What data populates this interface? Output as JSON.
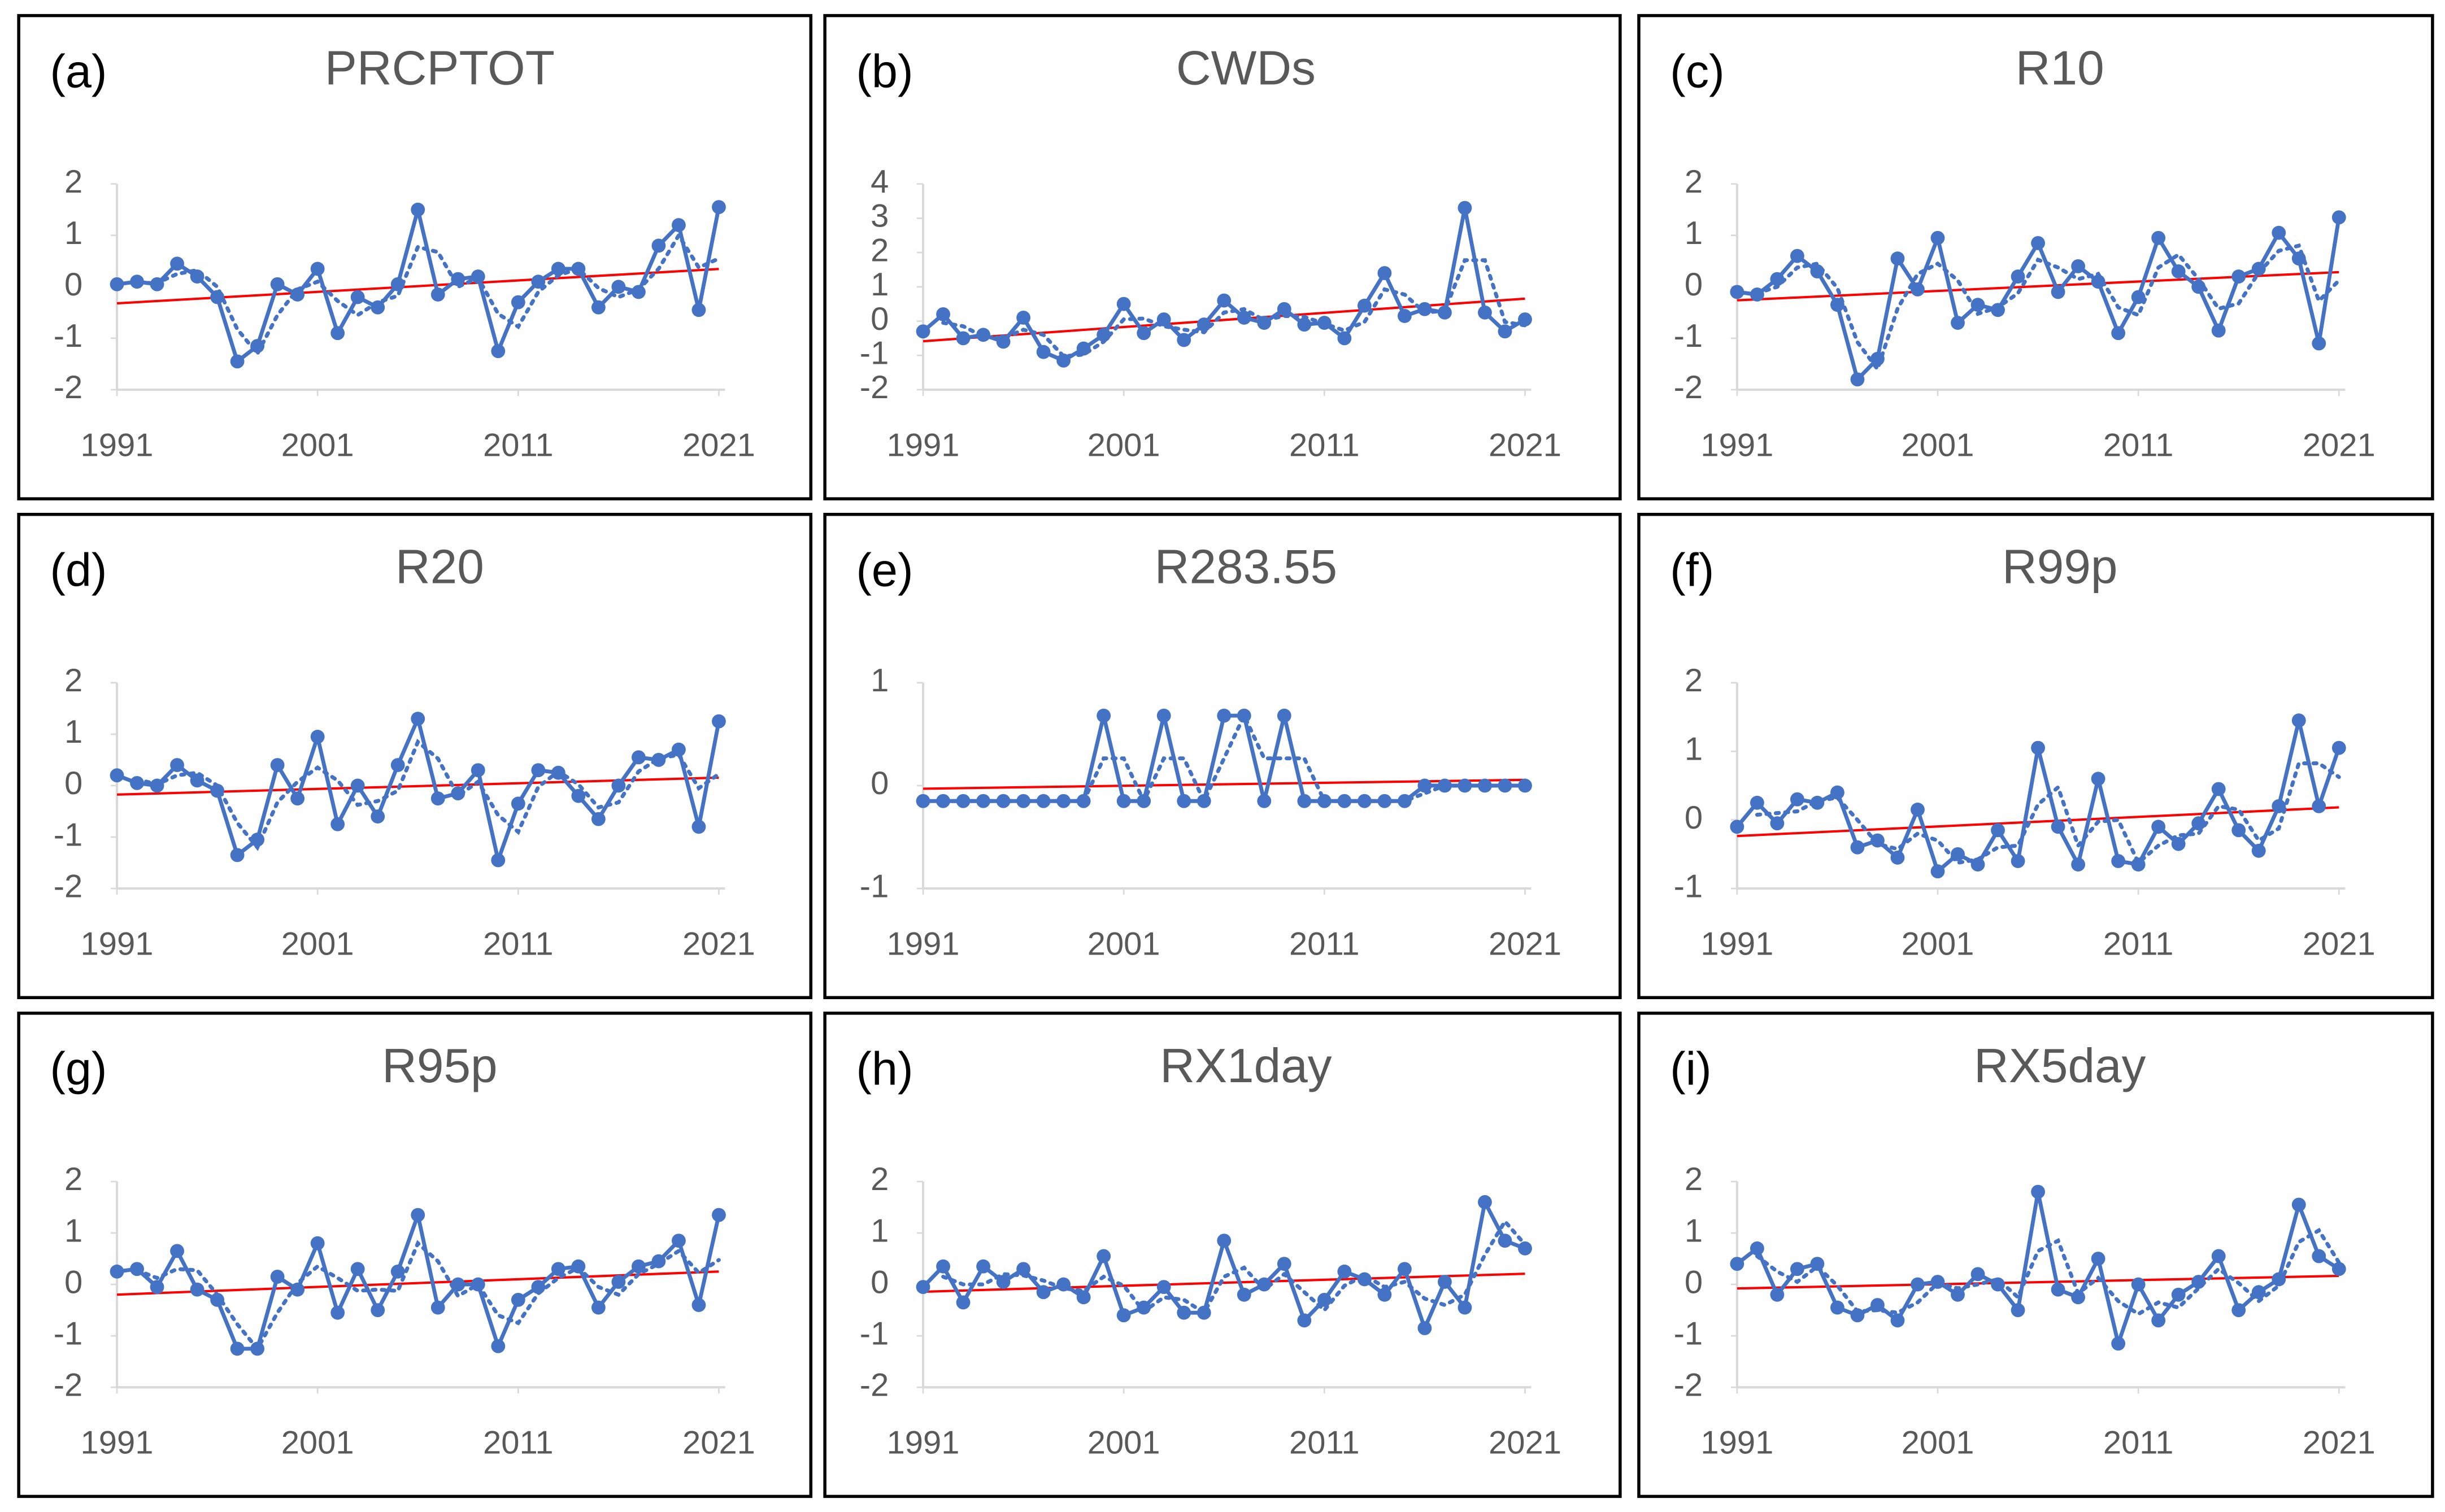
{
  "chart_data": [
    {
      "type": "line",
      "label": "(a)",
      "title": "PRCPTOT",
      "color": "#4472c4",
      "trend_color": "#ff0000",
      "trendline": "linear",
      "moving_average_period": 2,
      "x": [
        1991,
        1992,
        1993,
        1994,
        1995,
        1996,
        1997,
        1998,
        1999,
        2000,
        2001,
        2002,
        2003,
        2004,
        2005,
        2006,
        2007,
        2008,
        2009,
        2010,
        2011,
        2012,
        2013,
        2014,
        2015,
        2016,
        2017,
        2018,
        2019,
        2020,
        2021
      ],
      "values": [
        0.05,
        0.1,
        0.05,
        0.45,
        0.2,
        -0.2,
        -1.45,
        -1.15,
        0.05,
        -0.15,
        0.35,
        -0.9,
        -0.2,
        -0.4,
        0.05,
        1.5,
        -0.15,
        0.15,
        0.2,
        -1.25,
        -0.3,
        0.1,
        0.35,
        0.35,
        -0.4,
        0.0,
        -0.1,
        0.8,
        1.2,
        -0.45,
        1.55
      ],
      "xlim": [
        1991,
        2021
      ],
      "xticks": [
        1991,
        2001,
        2011,
        2021
      ],
      "ylim": [
        -2,
        2
      ],
      "yticks": [
        -2,
        -1,
        0,
        1,
        2
      ]
    },
    {
      "type": "line",
      "label": "(b)",
      "title": "CWDs",
      "color": "#4472c4",
      "trend_color": "#ff0000",
      "trendline": "linear",
      "moving_average_period": 2,
      "x": [
        1991,
        1992,
        1993,
        1994,
        1995,
        1996,
        1997,
        1998,
        1999,
        2000,
        2001,
        2002,
        2003,
        2004,
        2005,
        2006,
        2007,
        2008,
        2009,
        2010,
        2011,
        2012,
        2013,
        2014,
        2015,
        2016,
        2017,
        2018,
        2019,
        2020,
        2021
      ],
      "values": [
        -0.3,
        0.2,
        -0.5,
        -0.4,
        -0.6,
        0.1,
        -0.9,
        -1.15,
        -0.8,
        -0.4,
        0.5,
        -0.35,
        0.05,
        -0.55,
        -0.1,
        0.6,
        0.1,
        -0.05,
        0.35,
        -0.1,
        -0.05,
        -0.5,
        0.45,
        1.4,
        0.15,
        0.35,
        0.25,
        3.3,
        0.25,
        -0.3,
        0.05
      ],
      "xlim": [
        1991,
        2021
      ],
      "xticks": [
        1991,
        2001,
        2011,
        2021
      ],
      "ylim": [
        -2,
        4
      ],
      "yticks": [
        -2,
        -1,
        0,
        1,
        2,
        3,
        4
      ]
    },
    {
      "type": "line",
      "label": "(c)",
      "title": "R10",
      "color": "#4472c4",
      "trend_color": "#ff0000",
      "trendline": "linear",
      "moving_average_period": 2,
      "x": [
        1991,
        1992,
        1993,
        1994,
        1995,
        1996,
        1997,
        1998,
        1999,
        2000,
        2001,
        2002,
        2003,
        2004,
        2005,
        2006,
        2007,
        2008,
        2009,
        2010,
        2011,
        2012,
        2013,
        2014,
        2015,
        2016,
        2017,
        2018,
        2019,
        2020,
        2021
      ],
      "values": [
        -0.1,
        -0.15,
        0.15,
        0.6,
        0.3,
        -0.35,
        -1.8,
        -1.4,
        0.55,
        -0.05,
        0.95,
        -0.7,
        -0.35,
        -0.45,
        0.2,
        0.85,
        -0.1,
        0.4,
        0.1,
        -0.9,
        -0.2,
        0.95,
        0.3,
        0.0,
        -0.85,
        0.2,
        0.35,
        1.05,
        0.55,
        -1.1,
        1.35
      ],
      "xlim": [
        1991,
        2021
      ],
      "xticks": [
        1991,
        2001,
        2011,
        2021
      ],
      "ylim": [
        -2,
        2
      ],
      "yticks": [
        -2,
        -1,
        0,
        1,
        2
      ]
    },
    {
      "type": "line",
      "label": "(d)",
      "title": "R20",
      "color": "#4472c4",
      "trend_color": "#ff0000",
      "trendline": "linear",
      "moving_average_period": 2,
      "x": [
        1991,
        1992,
        1993,
        1994,
        1995,
        1996,
        1997,
        1998,
        1999,
        2000,
        2001,
        2002,
        2003,
        2004,
        2005,
        2006,
        2007,
        2008,
        2009,
        2010,
        2011,
        2012,
        2013,
        2014,
        2015,
        2016,
        2017,
        2018,
        2019,
        2020,
        2021
      ],
      "values": [
        0.2,
        0.05,
        0.0,
        0.4,
        0.1,
        -0.1,
        -1.35,
        -1.05,
        0.4,
        -0.25,
        0.95,
        -0.75,
        0.0,
        -0.6,
        0.4,
        1.3,
        -0.25,
        -0.15,
        0.3,
        -1.45,
        -0.35,
        0.3,
        0.25,
        -0.2,
        -0.65,
        0.0,
        0.55,
        0.5,
        0.7,
        -0.8,
        1.25
      ],
      "xlim": [
        1991,
        2021
      ],
      "xticks": [
        1991,
        2001,
        2011,
        2021
      ],
      "ylim": [
        -2,
        2
      ],
      "yticks": [
        -2,
        -1,
        0,
        1,
        2
      ]
    },
    {
      "type": "line",
      "label": "(e)",
      "title": "R283.55",
      "color": "#4472c4",
      "trend_color": "#ff0000",
      "trendline": "linear",
      "moving_average_period": 2,
      "x": [
        1991,
        1992,
        1993,
        1994,
        1995,
        1996,
        1997,
        1998,
        1999,
        2000,
        2001,
        2002,
        2003,
        2004,
        2005,
        2006,
        2007,
        2008,
        2009,
        2010,
        2011,
        2012,
        2013,
        2014,
        2015,
        2016,
        2017,
        2018,
        2019,
        2020,
        2021
      ],
      "values": [
        -0.15,
        -0.15,
        -0.15,
        -0.15,
        -0.15,
        -0.15,
        -0.15,
        -0.15,
        -0.15,
        0.68,
        -0.15,
        -0.15,
        0.68,
        -0.15,
        -0.15,
        0.68,
        0.68,
        -0.15,
        0.68,
        -0.15,
        -0.15,
        -0.15,
        -0.15,
        -0.15,
        -0.15,
        0.0,
        0.0,
        0.0,
        0.0,
        0.0,
        0.0
      ],
      "xlim": [
        1991,
        2021
      ],
      "xticks": [
        1991,
        2001,
        2011,
        2021
      ],
      "ylim": [
        -1,
        1
      ],
      "yticks": [
        -1,
        0,
        1
      ]
    },
    {
      "type": "line",
      "label": "(f)",
      "title": "R99p",
      "color": "#4472c4",
      "trend_color": "#ff0000",
      "trendline": "linear",
      "moving_average_period": 2,
      "x": [
        1991,
        1992,
        1993,
        1994,
        1995,
        1996,
        1997,
        1998,
        1999,
        2000,
        2001,
        2002,
        2003,
        2004,
        2005,
        2006,
        2007,
        2008,
        2009,
        2010,
        2011,
        2012,
        2013,
        2014,
        2015,
        2016,
        2017,
        2018,
        2019,
        2020,
        2021
      ],
      "values": [
        -0.1,
        0.25,
        -0.05,
        0.3,
        0.25,
        0.4,
        -0.4,
        -0.3,
        -0.55,
        0.15,
        -0.75,
        -0.5,
        -0.65,
        -0.15,
        -0.6,
        1.05,
        -0.1,
        -0.65,
        0.6,
        -0.6,
        -0.65,
        -0.1,
        -0.35,
        -0.05,
        0.45,
        -0.15,
        -0.45,
        0.2,
        1.45,
        0.2,
        1.05
      ],
      "xlim": [
        1991,
        2021
      ],
      "xticks": [
        1991,
        2001,
        2011,
        2021
      ],
      "ylim": [
        -1,
        2
      ],
      "yticks": [
        -1,
        0,
        1,
        2
      ]
    },
    {
      "type": "line",
      "label": "(g)",
      "title": "R95p",
      "color": "#4472c4",
      "trend_color": "#ff0000",
      "trendline": "linear",
      "moving_average_period": 2,
      "x": [
        1991,
        1992,
        1993,
        1994,
        1995,
        1996,
        1997,
        1998,
        1999,
        2000,
        2001,
        2002,
        2003,
        2004,
        2005,
        2006,
        2007,
        2008,
        2009,
        2010,
        2011,
        2012,
        2013,
        2014,
        2015,
        2016,
        2017,
        2018,
        2019,
        2020,
        2021
      ],
      "values": [
        0.25,
        0.3,
        -0.05,
        0.65,
        -0.1,
        -0.3,
        -1.25,
        -1.25,
        0.15,
        -0.1,
        0.8,
        -0.55,
        0.3,
        -0.5,
        0.25,
        1.35,
        -0.45,
        0.0,
        0.0,
        -1.2,
        -0.3,
        -0.05,
        0.3,
        0.35,
        -0.45,
        0.05,
        0.35,
        0.45,
        0.85,
        -0.4,
        1.35
      ],
      "xlim": [
        1991,
        2021
      ],
      "xticks": [
        1991,
        2001,
        2011,
        2021
      ],
      "ylim": [
        -2,
        2
      ],
      "yticks": [
        -2,
        -1,
        0,
        1,
        2
      ]
    },
    {
      "type": "line",
      "label": "(h)",
      "title": "RX1day",
      "color": "#4472c4",
      "trend_color": "#ff0000",
      "trendline": "linear",
      "moving_average_period": 2,
      "x": [
        1991,
        1992,
        1993,
        1994,
        1995,
        1996,
        1997,
        1998,
        1999,
        2000,
        2001,
        2002,
        2003,
        2004,
        2005,
        2006,
        2007,
        2008,
        2009,
        2010,
        2011,
        2012,
        2013,
        2014,
        2015,
        2016,
        2017,
        2018,
        2019,
        2020,
        2021
      ],
      "values": [
        -0.05,
        0.35,
        -0.35,
        0.35,
        0.05,
        0.3,
        -0.15,
        0.0,
        -0.25,
        0.55,
        -0.6,
        -0.45,
        -0.05,
        -0.55,
        -0.55,
        0.85,
        -0.2,
        0.0,
        0.4,
        -0.7,
        -0.3,
        0.25,
        0.1,
        -0.2,
        0.3,
        -0.85,
        0.05,
        -0.45,
        1.6,
        0.85,
        0.7
      ],
      "xlim": [
        1991,
        2021
      ],
      "xticks": [
        1991,
        2001,
        2011,
        2021
      ],
      "ylim": [
        -2,
        2
      ],
      "yticks": [
        -2,
        -1,
        0,
        1,
        2
      ]
    },
    {
      "type": "line",
      "label": "(i)",
      "title": "RX5day",
      "color": "#4472c4",
      "trend_color": "#ff0000",
      "trendline": "linear",
      "moving_average_period": 2,
      "x": [
        1991,
        1992,
        1993,
        1994,
        1995,
        1996,
        1997,
        1998,
        1999,
        2000,
        2001,
        2002,
        2003,
        2004,
        2005,
        2006,
        2007,
        2008,
        2009,
        2010,
        2011,
        2012,
        2013,
        2014,
        2015,
        2016,
        2017,
        2018,
        2019,
        2020,
        2021
      ],
      "values": [
        0.4,
        0.7,
        -0.2,
        0.3,
        0.4,
        -0.45,
        -0.6,
        -0.4,
        -0.7,
        0.0,
        0.05,
        -0.2,
        0.2,
        0.0,
        -0.5,
        1.8,
        -0.1,
        -0.25,
        0.5,
        -1.15,
        0.0,
        -0.7,
        -0.2,
        0.05,
        0.55,
        -0.5,
        -0.15,
        0.1,
        1.55,
        0.55,
        0.3
      ],
      "xlim": [
        1991,
        2021
      ],
      "xticks": [
        1991,
        2001,
        2011,
        2021
      ],
      "ylim": [
        -2,
        2
      ],
      "yticks": [
        -2,
        -1,
        0,
        1,
        2
      ]
    }
  ]
}
